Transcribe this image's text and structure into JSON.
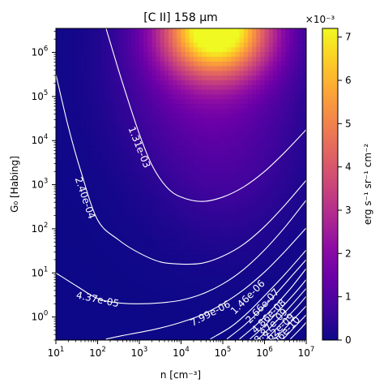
{
  "chart_data": {
    "type": "heatmap",
    "title": "[C II] 158 μm",
    "xlabel": "n [cm⁻³]",
    "ylabel": "G₀ [Habing]",
    "x_scale": "log",
    "y_scale": "log",
    "xlim": [
      10,
      10000000
    ],
    "ylim": [
      0.3,
      3500000
    ],
    "x_ticks": [
      {
        "value": 10,
        "base": "10",
        "exp": "1"
      },
      {
        "value": 100,
        "base": "10",
        "exp": "2"
      },
      {
        "value": 1000,
        "base": "10",
        "exp": "3"
      },
      {
        "value": 10000,
        "base": "10",
        "exp": "4"
      },
      {
        "value": 100000,
        "base": "10",
        "exp": "5"
      },
      {
        "value": 1000000,
        "base": "10",
        "exp": "6"
      },
      {
        "value": 10000000,
        "base": "10",
        "exp": "7"
      }
    ],
    "y_ticks": [
      {
        "value": 1,
        "base": "10",
        "exp": "0"
      },
      {
        "value": 10,
        "base": "10",
        "exp": "1"
      },
      {
        "value": 100,
        "base": "10",
        "exp": "2"
      },
      {
        "value": 1000,
        "base": "10",
        "exp": "3"
      },
      {
        "value": 10000,
        "base": "10",
        "exp": "4"
      },
      {
        "value": 100000,
        "base": "10",
        "exp": "5"
      },
      {
        "value": 1000000,
        "base": "10",
        "exp": "6"
      }
    ],
    "colorbar": {
      "label": "erg s⁻¹ sr⁻¹ cm⁻²",
      "scale_factor": "×10⁻³",
      "range": [
        0,
        7.2
      ],
      "ticks": [
        "0",
        "1",
        "2",
        "3",
        "4",
        "5",
        "6",
        "7"
      ],
      "colormap": "plasma"
    },
    "contours": [
      {
        "level": "1.31e-03",
        "log_n": [
          2.2,
          2.6,
          3.0,
          3.3,
          3.65,
          4.0,
          4.5,
          5.0,
          5.5,
          6.0,
          6.5,
          7.0
        ],
        "log_g0": [
          6.55,
          5.3,
          4.15,
          3.45,
          2.95,
          2.72,
          2.62,
          2.72,
          2.95,
          3.3,
          3.75,
          4.25
        ],
        "label_at": [
          3.0,
          3.85
        ]
      },
      {
        "level": "2.40e-04",
        "log_n": [
          1.0,
          1.3,
          1.6,
          2.0,
          2.5,
          3.0,
          3.5,
          4.0,
          4.5,
          5.0,
          5.5,
          6.0,
          6.5,
          7.0
        ],
        "log_g0": [
          5.5,
          4.3,
          3.3,
          2.2,
          1.75,
          1.45,
          1.25,
          1.2,
          1.22,
          1.38,
          1.65,
          2.05,
          2.55,
          3.1
        ],
        "label_at": [
          1.7,
          2.7
        ]
      },
      {
        "level": "4.37e-05",
        "log_n": [
          1.0,
          1.5,
          2.0,
          2.5,
          3.0,
          3.5,
          4.0,
          4.5,
          5.0,
          5.5,
          6.0,
          6.5,
          7.0
        ],
        "log_g0": [
          1.0,
          0.7,
          0.42,
          0.32,
          0.3,
          0.32,
          0.38,
          0.52,
          0.75,
          1.08,
          1.52,
          2.05,
          2.65
        ],
        "label_at": [
          2.0,
          0.4
        ]
      },
      {
        "level": "7.99e-06",
        "log_n": [
          2.2,
          2.6,
          3.0,
          3.5,
          4.0,
          4.5,
          5.0,
          5.5,
          6.0,
          6.5,
          7.0
        ],
        "log_g0": [
          -0.5,
          -0.42,
          -0.35,
          -0.25,
          -0.12,
          0.05,
          0.3,
          0.62,
          1.02,
          1.5,
          2.02
        ],
        "label_at": [
          4.7,
          0.08
        ]
      },
      {
        "level": "1.46e-06",
        "log_n": [
          4.7,
          5.2,
          5.6,
          6.0,
          6.5,
          7.0
        ],
        "log_g0": [
          -0.5,
          -0.22,
          0.1,
          0.48,
          0.98,
          1.52
        ],
        "label_at": [
          5.6,
          0.45
        ]
      },
      {
        "level": "2.66e-07",
        "log_n": [
          5.1,
          5.5,
          5.9,
          6.3,
          6.7,
          7.0
        ],
        "log_g0": [
          -0.5,
          -0.2,
          0.15,
          0.55,
          0.98,
          1.3
        ],
        "label_at": [
          5.95,
          0.25
        ]
      },
      {
        "level": "4.86e-08",
        "log_n": [
          5.4,
          5.8,
          6.2,
          6.6,
          7.0
        ],
        "log_g0": [
          -0.5,
          -0.18,
          0.2,
          0.62,
          1.1
        ],
        "label_at": [
          6.1,
          0.02
        ]
      },
      {
        "level": "8.87e-09",
        "log_n": [
          5.65,
          6.0,
          6.4,
          6.8,
          7.0
        ],
        "log_g0": [
          -0.5,
          -0.2,
          0.2,
          0.62,
          0.85
        ],
        "label_at": [
          6.15,
          -0.2
        ]
      },
      {
        "level": "1.62e-09",
        "log_n": [
          5.85,
          6.2,
          6.6,
          7.0
        ],
        "log_g0": [
          -0.5,
          -0.18,
          0.22,
          0.65
        ],
        "label_at": [
          6.3,
          -0.3
        ]
      },
      {
        "level": "2.96e-10",
        "log_n": [
          6.05,
          6.4,
          6.8,
          7.0
        ],
        "log_g0": [
          -0.5,
          -0.15,
          0.25,
          0.47
        ],
        "label_at": [
          6.45,
          -0.38
        ]
      },
      {
        "level": "",
        "log_n": [
          6.25,
          6.6,
          7.0
        ],
        "log_g0": [
          -0.5,
          -0.15,
          0.25
        ],
        "label_at": null
      },
      {
        "level": "",
        "log_n": [
          6.45,
          6.75,
          7.0
        ],
        "log_g0": [
          -0.5,
          -0.2,
          0.05
        ],
        "label_at": null
      },
      {
        "level": "",
        "log_n": [
          6.62,
          6.85,
          7.0
        ],
        "log_g0": [
          -0.5,
          -0.28,
          -0.12
        ],
        "label_at": null
      }
    ]
  }
}
